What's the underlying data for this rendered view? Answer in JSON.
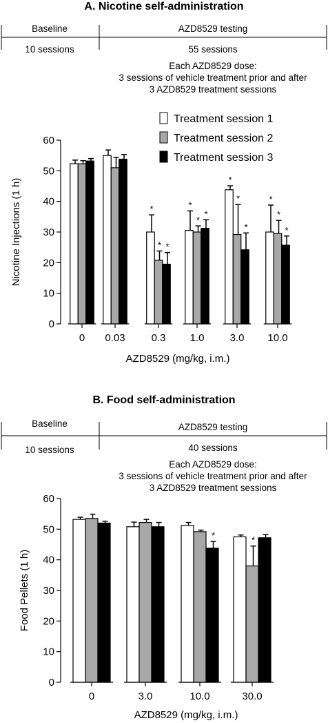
{
  "panels": [
    {
      "title": "A. Nicotine self-administration",
      "timeline": {
        "baseline_label": "Baseline",
        "testing_label": "AZD8529 testing",
        "baseline_sessions": "10 sessions",
        "testing_sessions": "55 sessions",
        "note_lines": [
          "Each AZD8529 dose:",
          "3 sessions of vehicle treatment prior and after",
          "3 AZD8529 treatment sessions"
        ]
      }
    },
    {
      "title": "B. Food self-administration",
      "timeline": {
        "baseline_label": "Baseline",
        "testing_label": "AZD8529 testing",
        "baseline_sessions": "10 sessions",
        "testing_sessions": "40 sessions",
        "note_lines": [
          "Each AZD8529 dose:",
          "3 sessions of vehicle treatment prior and after",
          "3 AZD8529 treatment sessions"
        ]
      }
    }
  ],
  "legend": {
    "placement": "top-right of panel A",
    "entries": [
      "Treatment session 1",
      "Treatment session 2",
      "Treatment session 3"
    ]
  },
  "series_colors": [
    "#ffffff",
    "#a8a8a8",
    "#000000"
  ],
  "chart_data": [
    {
      "type": "bar",
      "categories": [
        "0",
        "0.03",
        "0.3",
        "1.0",
        "3.0",
        "10.0"
      ],
      "xlabel": "AZD8529 (mg/kg, i.m.)",
      "ylabel": "Nicotine Injections (1 h)",
      "ylim": [
        0,
        60
      ],
      "yticks": [
        0,
        10,
        20,
        30,
        40,
        50,
        60
      ],
      "grid": false,
      "significance_marker": "*",
      "series": [
        {
          "name": "Treatment session 1",
          "values": [
            52.3,
            55,
            30,
            30.5,
            43.8,
            30
          ],
          "errors": [
            1.2,
            1.8,
            5.6,
            6.4,
            1.3,
            8.8
          ],
          "significant": [
            false,
            false,
            true,
            true,
            true,
            true
          ]
        },
        {
          "name": "Treatment session 2",
          "values": [
            52.3,
            51,
            20.8,
            30,
            29.2,
            29.5
          ],
          "errors": [
            1.0,
            3.4,
            3.0,
            2.0,
            9.8,
            4.3
          ],
          "significant": [
            false,
            false,
            true,
            true,
            true,
            true
          ]
        },
        {
          "name": "Treatment session 3",
          "values": [
            53.2,
            53.8,
            19.5,
            31.2,
            24.2,
            25.7
          ],
          "errors": [
            0.8,
            1.5,
            3.8,
            2.8,
            5.5,
            3.0
          ],
          "significant": [
            false,
            false,
            true,
            true,
            true,
            true
          ]
        }
      ]
    },
    {
      "type": "bar",
      "categories": [
        "0",
        "3.0",
        "10.0",
        "30.0"
      ],
      "xlabel": "AZD8529 (mg/kg, i.m.)",
      "ylabel": "Food Pellets (1 h)",
      "ylim": [
        0,
        60
      ],
      "yticks": [
        0,
        10,
        20,
        30,
        40,
        50,
        60
      ],
      "grid": false,
      "significance_marker": "*",
      "series": [
        {
          "name": "Treatment session 1",
          "values": [
            53.2,
            50.8,
            51.2,
            47.5
          ],
          "errors": [
            0.7,
            1.5,
            1.0,
            0.6
          ],
          "significant": [
            false,
            false,
            false,
            false
          ]
        },
        {
          "name": "Treatment session 2",
          "values": [
            53.5,
            52.2,
            49.2,
            38
          ],
          "errors": [
            1.4,
            1.0,
            0.5,
            6.5
          ],
          "significant": [
            false,
            false,
            false,
            true
          ]
        },
        {
          "name": "Treatment session 3",
          "values": [
            52,
            50.8,
            43.8,
            47.2
          ],
          "errors": [
            0.6,
            1.4,
            2.2,
            1.0
          ],
          "significant": [
            false,
            false,
            true,
            false
          ]
        }
      ]
    }
  ]
}
